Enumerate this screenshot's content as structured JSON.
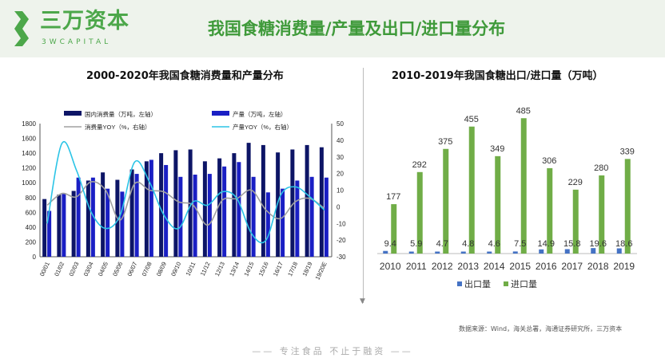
{
  "header": {
    "logo_cn": "三万资本",
    "logo_en": "3WCAPITAL",
    "title": "我国食糖消费量/产量及出口/进口量分布",
    "brand_color": "#4ca74a"
  },
  "footer": {
    "slogan": "—— 专注食品  不止于融资 ——",
    "source": "数据来源：Wind，海关总署，海通证券研究所，三万资本"
  },
  "chart_data": [
    {
      "type": "bar+line",
      "title": "2000-2020年我国食糖消费量和产量分布",
      "categories": [
        "00/01",
        "01/02",
        "02/03",
        "03/04",
        "04/05",
        "05/06",
        "06/07",
        "07/08",
        "08/09",
        "09/10",
        "10/11",
        "11/12",
        "12/13",
        "13/14",
        "14/15",
        "15/16",
        "16/17",
        "17/18",
        "18/19",
        "19/20E"
      ],
      "ylim_left": [
        0,
        1800
      ],
      "yticks_left": [
        0,
        200,
        400,
        600,
        800,
        1000,
        1200,
        1400,
        1600,
        1800
      ],
      "ylim_right": [
        -30,
        50
      ],
      "yticks_right": [
        -30,
        -20,
        -10,
        0,
        10,
        20,
        30,
        40,
        50
      ],
      "legend": "top",
      "series": [
        {
          "name": "国内消费量（万吨，左轴）",
          "type": "bar",
          "axis": "left",
          "color": "#0d1566",
          "values": [
            780,
            840,
            890,
            1030,
            1140,
            1040,
            1180,
            1290,
            1400,
            1440,
            1450,
            1290,
            1330,
            1400,
            1540,
            1510,
            1410,
            1450,
            1510,
            1480
          ]
        },
        {
          "name": "产量（万吨，左轴）",
          "type": "bar",
          "axis": "left",
          "color": "#1a1fc4",
          "values": [
            620,
            850,
            1070,
            1070,
            920,
            880,
            1120,
            1310,
            1240,
            1080,
            1110,
            1120,
            1220,
            1280,
            1080,
            870,
            920,
            1030,
            1080,
            1070
          ]
        },
        {
          "name": "消费量YOY（%，右轴）",
          "type": "line",
          "axis": "right",
          "color": "#a0a0a0",
          "values": [
            1,
            8,
            6,
            15,
            10,
            -8,
            14,
            10,
            9,
            3,
            1,
            -11,
            4,
            5,
            10,
            -2,
            -7,
            3,
            5,
            -1
          ]
        },
        {
          "name": "产量YOY（%，右轴）",
          "type": "line",
          "axis": "right",
          "color": "#2bc4e6",
          "values": [
            -10,
            38,
            22,
            -3,
            -13,
            -5,
            27,
            15,
            -5,
            -13,
            3,
            1,
            9,
            5,
            -16,
            -20,
            7,
            12,
            6,
            -2
          ]
        }
      ]
    },
    {
      "type": "bar",
      "title": "2010-2019年我国食糖出口/进口量（万吨）",
      "categories": [
        "2010",
        "2011",
        "2012",
        "2013",
        "2014",
        "2015",
        "2016",
        "2017",
        "2018",
        "2019"
      ],
      "legend": "bottom",
      "series": [
        {
          "name": "出口量",
          "color": "#4472c4",
          "values": [
            9.4,
            5.9,
            4.7,
            4.8,
            4.6,
            7.5,
            14.9,
            15.8,
            19.6,
            18.6
          ]
        },
        {
          "name": "进口量",
          "color": "#70ad47",
          "values": [
            177,
            292,
            375,
            455,
            349,
            485,
            306,
            229,
            280,
            339
          ]
        }
      ]
    }
  ]
}
